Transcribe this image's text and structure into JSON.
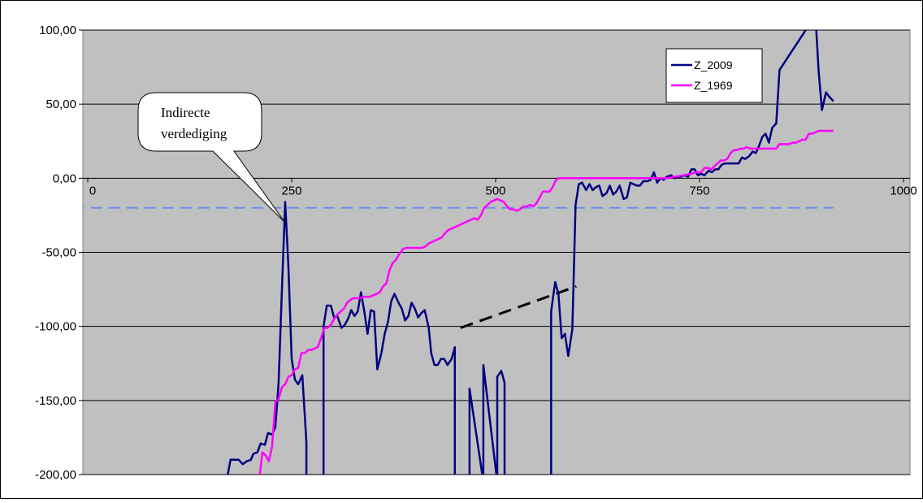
{
  "chart_data": {
    "type": "line",
    "title": "",
    "xlabel": "",
    "ylabel": "",
    "xlim": [
      0,
      1000
    ],
    "ylim": [
      -200,
      100
    ],
    "x_ticks": [
      0,
      250,
      500,
      750,
      1000
    ],
    "x_tick_labels": [
      "0",
      "250",
      "500",
      "750",
      "1000"
    ],
    "y_ticks": [
      100,
      50,
      0,
      -50,
      -100,
      -150,
      -200
    ],
    "y_tick_labels": [
      "100,00",
      "50,00",
      "0,00",
      "-50,00",
      "-100,00",
      "-150,00",
      "-200,00"
    ],
    "grid": "horizontal",
    "background": "#c0c0c0",
    "legend_position": "top-right",
    "series": [
      {
        "name": "Z_2009",
        "color": "#000080",
        "points": [
          [
            170,
            -205
          ],
          [
            175,
            -190
          ],
          [
            185,
            -190
          ],
          [
            190,
            -193
          ],
          [
            195,
            -191
          ],
          [
            200,
            -190
          ],
          [
            203,
            -186
          ],
          [
            208,
            -185
          ],
          [
            212,
            -179
          ],
          [
            217,
            -180
          ],
          [
            221,
            -172
          ],
          [
            226,
            -173
          ],
          [
            230,
            -168
          ],
          [
            234,
            -138
          ],
          [
            238,
            -75
          ],
          [
            242,
            -16
          ],
          [
            246,
            -60
          ],
          [
            250,
            -122
          ],
          [
            254,
            -136
          ],
          [
            258,
            -139
          ],
          [
            263,
            -133
          ],
          [
            268,
            -178
          ],
          [
            268,
            -205
          ],
          [
            289,
            -205
          ],
          [
            289,
            -100
          ],
          [
            293,
            -86
          ],
          [
            298,
            -86
          ],
          [
            302,
            -94
          ],
          [
            306,
            -93
          ],
          [
            311,
            -101
          ],
          [
            315,
            -99
          ],
          [
            319,
            -95
          ],
          [
            323,
            -89
          ],
          [
            327,
            -93
          ],
          [
            331,
            -90
          ],
          [
            335,
            -77
          ],
          [
            339,
            -90
          ],
          [
            343,
            -105
          ],
          [
            347,
            -89
          ],
          [
            351,
            -90
          ],
          [
            355,
            -129
          ],
          [
            360,
            -118
          ],
          [
            364,
            -105
          ],
          [
            368,
            -97
          ],
          [
            372,
            -83
          ],
          [
            376,
            -78
          ],
          [
            381,
            -84
          ],
          [
            385,
            -88
          ],
          [
            389,
            -96
          ],
          [
            393,
            -93
          ],
          [
            397,
            -84
          ],
          [
            401,
            -88
          ],
          [
            405,
            -94
          ],
          [
            409,
            -91
          ],
          [
            413,
            -89
          ],
          [
            418,
            -101
          ],
          [
            421,
            -118
          ],
          [
            425,
            -126
          ],
          [
            429,
            -126
          ],
          [
            433,
            -122
          ],
          [
            437,
            -122
          ],
          [
            441,
            -126
          ],
          [
            446,
            -122
          ],
          [
            450,
            -114
          ],
          [
            450,
            -205
          ],
          [
            468,
            -205
          ],
          [
            468,
            -142
          ],
          [
            485,
            -205
          ],
          [
            485,
            -126
          ],
          [
            502,
            -205
          ],
          [
            502,
            -134
          ],
          [
            507,
            -130
          ],
          [
            511,
            -138
          ],
          [
            511,
            -205
          ],
          [
            568,
            -205
          ],
          [
            568,
            -90
          ],
          [
            573,
            -70
          ],
          [
            577,
            -78
          ],
          [
            581,
            -108
          ],
          [
            585,
            -105
          ],
          [
            589,
            -120
          ],
          [
            594,
            -102
          ],
          [
            598,
            -18
          ],
          [
            602,
            -4
          ],
          [
            606,
            -3
          ],
          [
            611,
            -8
          ],
          [
            615,
            -4
          ],
          [
            619,
            -8
          ],
          [
            623,
            -6
          ],
          [
            627,
            -5
          ],
          [
            631,
            -12
          ],
          [
            636,
            -10
          ],
          [
            640,
            -5
          ],
          [
            644,
            -11
          ],
          [
            648,
            -9
          ],
          [
            652,
            -5
          ],
          [
            657,
            -14
          ],
          [
            661,
            -13
          ],
          [
            665,
            -3
          ],
          [
            669,
            -4
          ],
          [
            673,
            -5
          ],
          [
            677,
            -5
          ],
          [
            681,
            -2
          ],
          [
            686,
            -2
          ],
          [
            690,
            -1
          ],
          [
            694,
            4
          ],
          [
            698,
            -3
          ],
          [
            702,
            0
          ],
          [
            706,
            -1
          ],
          [
            710,
            1
          ],
          [
            715,
            2
          ],
          [
            719,
            0
          ],
          [
            723,
            1
          ],
          [
            727,
            1
          ],
          [
            731,
            2
          ],
          [
            736,
            1
          ],
          [
            740,
            6
          ],
          [
            744,
            6
          ],
          [
            748,
            2
          ],
          [
            752,
            3
          ],
          [
            756,
            2
          ],
          [
            761,
            5
          ],
          [
            765,
            4
          ],
          [
            769,
            6
          ],
          [
            773,
            6
          ],
          [
            777,
            9
          ],
          [
            781,
            10
          ],
          [
            786,
            10
          ],
          [
            790,
            10
          ],
          [
            794,
            10
          ],
          [
            798,
            10
          ],
          [
            802,
            14
          ],
          [
            806,
            13
          ],
          [
            811,
            15
          ],
          [
            815,
            18
          ],
          [
            819,
            17
          ],
          [
            823,
            22
          ],
          [
            827,
            28
          ],
          [
            831,
            30
          ],
          [
            835,
            24
          ],
          [
            839,
            34
          ],
          [
            844,
            37
          ],
          [
            848,
            73
          ],
          [
            892,
            110
          ],
          [
            896,
            72
          ],
          [
            900,
            46
          ],
          [
            905,
            58
          ],
          [
            909,
            55
          ],
          [
            914,
            52
          ]
        ]
      },
      {
        "name": "Z_1969",
        "color": "#ff00ff",
        "points": [
          [
            210,
            -205
          ],
          [
            214,
            -185
          ],
          [
            218,
            -187
          ],
          [
            222,
            -191
          ],
          [
            226,
            -181
          ],
          [
            230,
            -151
          ],
          [
            234,
            -149
          ],
          [
            238,
            -141
          ],
          [
            242,
            -139
          ],
          [
            246,
            -134
          ],
          [
            250,
            -133
          ],
          [
            254,
            -129
          ],
          [
            258,
            -128
          ],
          [
            262,
            -118
          ],
          [
            266,
            -118
          ],
          [
            270,
            -116
          ],
          [
            274,
            -116
          ],
          [
            278,
            -115
          ],
          [
            282,
            -114
          ],
          [
            286,
            -108
          ],
          [
            290,
            -101
          ],
          [
            294,
            -101
          ],
          [
            298,
            -99
          ],
          [
            302,
            -95
          ],
          [
            306,
            -92
          ],
          [
            310,
            -90
          ],
          [
            314,
            -88
          ],
          [
            318,
            -84
          ],
          [
            322,
            -82
          ],
          [
            326,
            -81
          ],
          [
            330,
            -81
          ],
          [
            334,
            -81
          ],
          [
            338,
            -80
          ],
          [
            342,
            -80
          ],
          [
            346,
            -80
          ],
          [
            350,
            -79
          ],
          [
            354,
            -78
          ],
          [
            358,
            -77
          ],
          [
            362,
            -73
          ],
          [
            366,
            -71
          ],
          [
            370,
            -62
          ],
          [
            374,
            -57
          ],
          [
            378,
            -55
          ],
          [
            382,
            -51
          ],
          [
            386,
            -48
          ],
          [
            390,
            -47
          ],
          [
            394,
            -47
          ],
          [
            398,
            -47
          ],
          [
            402,
            -47
          ],
          [
            406,
            -47
          ],
          [
            410,
            -47
          ],
          [
            414,
            -46
          ],
          [
            418,
            -44
          ],
          [
            422,
            -43
          ],
          [
            426,
            -42
          ],
          [
            430,
            -41
          ],
          [
            434,
            -40
          ],
          [
            438,
            -37
          ],
          [
            442,
            -35
          ],
          [
            446,
            -34
          ],
          [
            450,
            -33
          ],
          [
            454,
            -32
          ],
          [
            458,
            -31
          ],
          [
            462,
            -30
          ],
          [
            466,
            -29
          ],
          [
            470,
            -28
          ],
          [
            474,
            -27
          ],
          [
            478,
            -28
          ],
          [
            482,
            -25
          ],
          [
            486,
            -20
          ],
          [
            490,
            -18
          ],
          [
            494,
            -16
          ],
          [
            498,
            -15
          ],
          [
            502,
            -14
          ],
          [
            506,
            -15
          ],
          [
            510,
            -16
          ],
          [
            514,
            -19
          ],
          [
            518,
            -21
          ],
          [
            522,
            -21
          ],
          [
            526,
            -22
          ],
          [
            530,
            -21
          ],
          [
            534,
            -19
          ],
          [
            538,
            -19
          ],
          [
            542,
            -18
          ],
          [
            546,
            -19
          ],
          [
            550,
            -17
          ],
          [
            554,
            -13
          ],
          [
            558,
            -9
          ],
          [
            562,
            -9
          ],
          [
            566,
            -9
          ],
          [
            570,
            -6
          ],
          [
            574,
            -1
          ],
          [
            578,
            0
          ],
          [
            582,
            0
          ],
          [
            590,
            0
          ],
          [
            600,
            0
          ],
          [
            610,
            0
          ],
          [
            620,
            0
          ],
          [
            630,
            0
          ],
          [
            640,
            0
          ],
          [
            650,
            0
          ],
          [
            660,
            0
          ],
          [
            670,
            0
          ],
          [
            680,
            0
          ],
          [
            690,
            0
          ],
          [
            700,
            0
          ],
          [
            710,
            0
          ],
          [
            720,
            1
          ],
          [
            730,
            2
          ],
          [
            740,
            3
          ],
          [
            746,
            4
          ],
          [
            752,
            4
          ],
          [
            756,
            7
          ],
          [
            760,
            7
          ],
          [
            764,
            6
          ],
          [
            768,
            8
          ],
          [
            772,
            10
          ],
          [
            776,
            12
          ],
          [
            780,
            12
          ],
          [
            784,
            13
          ],
          [
            788,
            17
          ],
          [
            792,
            19
          ],
          [
            796,
            19
          ],
          [
            800,
            20
          ],
          [
            804,
            20
          ],
          [
            808,
            21
          ],
          [
            812,
            20
          ],
          [
            816,
            20
          ],
          [
            820,
            20
          ],
          [
            824,
            20
          ],
          [
            828,
            20
          ],
          [
            832,
            20
          ],
          [
            836,
            20
          ],
          [
            840,
            20
          ],
          [
            844,
            20
          ],
          [
            848,
            23
          ],
          [
            852,
            23
          ],
          [
            856,
            23
          ],
          [
            860,
            23
          ],
          [
            864,
            24
          ],
          [
            868,
            24
          ],
          [
            872,
            25
          ],
          [
            876,
            26
          ],
          [
            880,
            26
          ],
          [
            884,
            30
          ],
          [
            888,
            30
          ],
          [
            892,
            31
          ],
          [
            896,
            32
          ],
          [
            900,
            32
          ],
          [
            914,
            32
          ]
        ]
      }
    ],
    "reference_lines": [
      {
        "style": "dashed",
        "color": "#6b8ff0",
        "points": [
          [
            -40,
            -20
          ],
          [
            914,
            -20
          ]
        ]
      },
      {
        "style": "dashed",
        "color": "#000000",
        "points": [
          [
            457,
            -101
          ],
          [
            599,
            -73
          ]
        ]
      }
    ],
    "annotations": [
      {
        "text_lines": [
          "Indirecte",
          "verdediging"
        ],
        "target": [
          242,
          -30
        ]
      }
    ]
  }
}
